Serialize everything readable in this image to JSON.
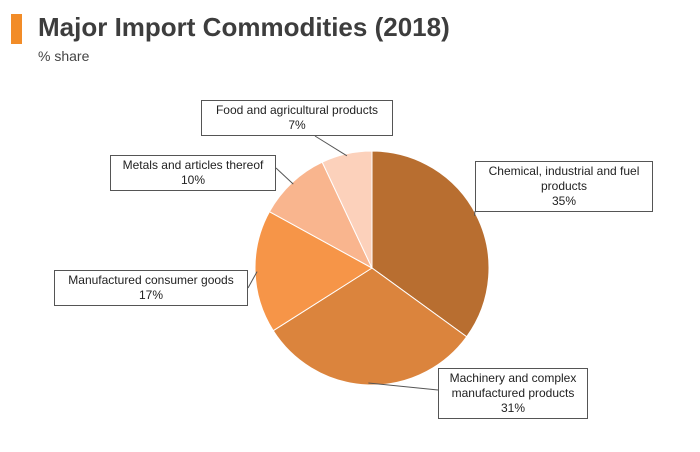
{
  "header": {
    "title": "Major Import Commodities (2018)",
    "subtitle": "% share",
    "accent_color": "#f28c28"
  },
  "chart_data": {
    "type": "pie",
    "title": "Major Import Commodities (2018)",
    "subtitle": "% share",
    "slices": [
      {
        "label": "Chemical, industrial and fuel products",
        "value": 35,
        "value_label": "35%",
        "color": "#b86e30"
      },
      {
        "label": "Machinery and complex manufactured products",
        "value": 31,
        "value_label": "31%",
        "color": "#db843d"
      },
      {
        "label": "Manufactured consumer goods",
        "value": 17,
        "value_label": "17%",
        "color": "#f69548"
      },
      {
        "label": "Metals and articles thereof",
        "value": 10,
        "value_label": "10%",
        "color": "#f9b58e"
      },
      {
        "label": "Food and agricultural products",
        "value": 7,
        "value_label": "7%",
        "color": "#fcd1bb"
      }
    ],
    "start_angle": "top",
    "direction": "clockwise"
  }
}
